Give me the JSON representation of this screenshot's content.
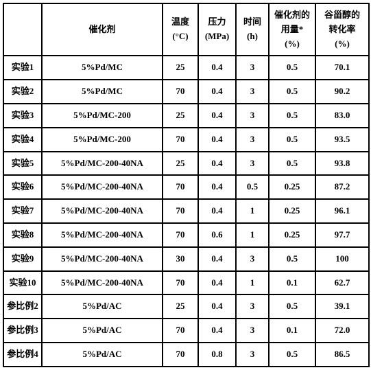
{
  "headers": {
    "label": "",
    "catalyst": "催化剂",
    "temp_line1": "温度",
    "temp_line2": "(°C)",
    "pressure_line1": "压力",
    "pressure_line2": "(MPa)",
    "time_line1": "时间",
    "time_line2": "(h)",
    "dosage_line1": "催化剂的",
    "dosage_line2": "用量*",
    "dosage_line3": "(%)",
    "conversion_line1": "谷甾醇的",
    "conversion_line2": "转化率",
    "conversion_line3": "(%)"
  },
  "rows": [
    {
      "label": "实验1",
      "catalyst": "5%Pd/MC",
      "temp": "25",
      "pressure": "0.4",
      "time": "3",
      "dosage": "0.5",
      "conversion": "70.1"
    },
    {
      "label": "实验2",
      "catalyst": "5%Pd/MC",
      "temp": "70",
      "pressure": "0.4",
      "time": "3",
      "dosage": "0.5",
      "conversion": "90.2"
    },
    {
      "label": "实验3",
      "catalyst": "5%Pd/MC-200",
      "temp": "25",
      "pressure": "0.4",
      "time": "3",
      "dosage": "0.5",
      "conversion": "83.0"
    },
    {
      "label": "实验4",
      "catalyst": "5%Pd/MC-200",
      "temp": "70",
      "pressure": "0.4",
      "time": "3",
      "dosage": "0.5",
      "conversion": "93.5"
    },
    {
      "label": "实验5",
      "catalyst": "5%Pd/MC-200-40NA",
      "temp": "25",
      "pressure": "0.4",
      "time": "3",
      "dosage": "0.5",
      "conversion": "93.8"
    },
    {
      "label": "实验6",
      "catalyst": "5%Pd/MC-200-40NA",
      "temp": "70",
      "pressure": "0.4",
      "time": "0.5",
      "dosage": "0.25",
      "conversion": "87.2"
    },
    {
      "label": "实验7",
      "catalyst": "5%Pd/MC-200-40NA",
      "temp": "70",
      "pressure": "0.4",
      "time": "1",
      "dosage": "0.25",
      "conversion": "96.1"
    },
    {
      "label": "实验8",
      "catalyst": "5%Pd/MC-200-40NA",
      "temp": "70",
      "pressure": "0.6",
      "time": "1",
      "dosage": "0.25",
      "conversion": "97.7"
    },
    {
      "label": "实验9",
      "catalyst": "5%Pd/MC-200-40NA",
      "temp": "30",
      "pressure": "0.4",
      "time": "3",
      "dosage": "0.5",
      "conversion": "100"
    },
    {
      "label": "实验10",
      "catalyst": "5%Pd/MC-200-40NA",
      "temp": "70",
      "pressure": "0.4",
      "time": "1",
      "dosage": "0.1",
      "conversion": "62.7"
    },
    {
      "label": "参比例2",
      "catalyst": "5%Pd/AC",
      "temp": "25",
      "pressure": "0.4",
      "time": "3",
      "dosage": "0.5",
      "conversion": "39.1"
    },
    {
      "label": "参比例3",
      "catalyst": "5%Pd/AC",
      "temp": "70",
      "pressure": "0.4",
      "time": "3",
      "dosage": "0.1",
      "conversion": "72.0"
    },
    {
      "label": "参比例4",
      "catalyst": "5%Pd/AC",
      "temp": "70",
      "pressure": "0.8",
      "time": "3",
      "dosage": "0.5",
      "conversion": "86.5"
    }
  ],
  "style": {
    "border_color": "#000000",
    "background": "#ffffff",
    "font_size": 13,
    "font_weight": "bold"
  }
}
